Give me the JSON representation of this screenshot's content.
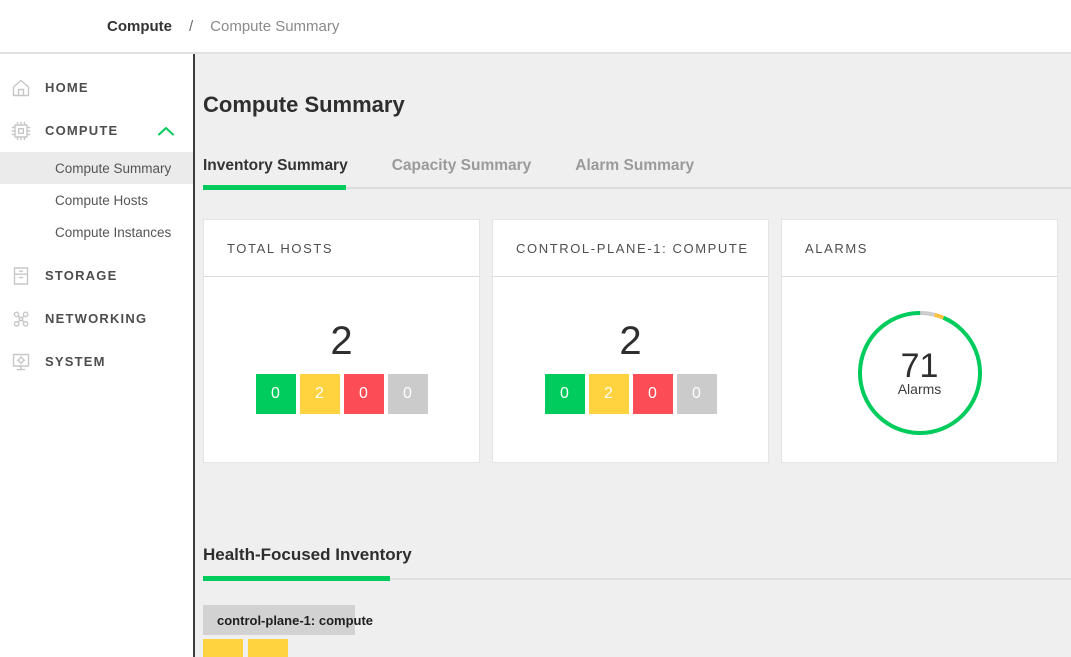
{
  "breadcrumb": {
    "section": "Compute",
    "separator": "/",
    "page": "Compute Summary"
  },
  "sidebar": {
    "items": [
      {
        "label": "HOME",
        "icon": "home-icon"
      },
      {
        "label": "COMPUTE",
        "icon": "compute-icon",
        "expanded": true
      },
      {
        "label": "STORAGE",
        "icon": "storage-icon"
      },
      {
        "label": "NETWORKING",
        "icon": "networking-icon"
      },
      {
        "label": "SYSTEM",
        "icon": "system-icon"
      }
    ],
    "compute_children": [
      {
        "label": "Compute Summary",
        "active": true
      },
      {
        "label": "Compute Hosts",
        "active": false
      },
      {
        "label": "Compute Instances",
        "active": false
      }
    ]
  },
  "page": {
    "title": "Compute Summary"
  },
  "tabs": [
    {
      "label": "Inventory Summary",
      "active": true
    },
    {
      "label": "Capacity Summary",
      "active": false
    },
    {
      "label": "Alarm Summary",
      "active": false
    }
  ],
  "cards": [
    {
      "title": "TOTAL HOSTS",
      "total": "2",
      "badges": [
        {
          "value": "0",
          "status": "ok"
        },
        {
          "value": "2",
          "status": "warning"
        },
        {
          "value": "0",
          "status": "critical"
        },
        {
          "value": "0",
          "status": "unknown"
        }
      ]
    },
    {
      "title": "CONTROL-PLANE-1: COMPUTE",
      "total": "2",
      "badges": [
        {
          "value": "0",
          "status": "ok"
        },
        {
          "value": "2",
          "status": "warning"
        },
        {
          "value": "0",
          "status": "critical"
        },
        {
          "value": "0",
          "status": "unknown"
        }
      ]
    },
    {
      "title": "ALARMS",
      "meter_value": "71",
      "meter_label": "Alarms"
    }
  ],
  "chart_data": {
    "type": "pie",
    "title": "ALARMS",
    "donut": true,
    "center_value": 71,
    "center_label": "Alarms",
    "start_angle_deg_from_top": 0,
    "segments": [
      {
        "name": "unknown",
        "color": "#CCCCCC",
        "sweep_deg": 14
      },
      {
        "name": "warning",
        "color": "#FFC040",
        "sweep_deg": 9
      },
      {
        "name": "ok",
        "color": "#00CB5D",
        "sweep_deg": 337
      }
    ]
  },
  "health": {
    "title": "Health-Focused Inventory",
    "group_label": "control-plane-1: compute",
    "tiles": [
      {
        "status": "warning"
      },
      {
        "status": "warning"
      }
    ]
  },
  "colors": {
    "ok": "#00CB5D",
    "warning": "#FFD23F",
    "critical": "#FC4C55",
    "unknown": "#CBCBCB",
    "accent": "#00CB5D",
    "sidebar_divider": "#3C3C3C",
    "content_background": "#EFEFEF"
  }
}
